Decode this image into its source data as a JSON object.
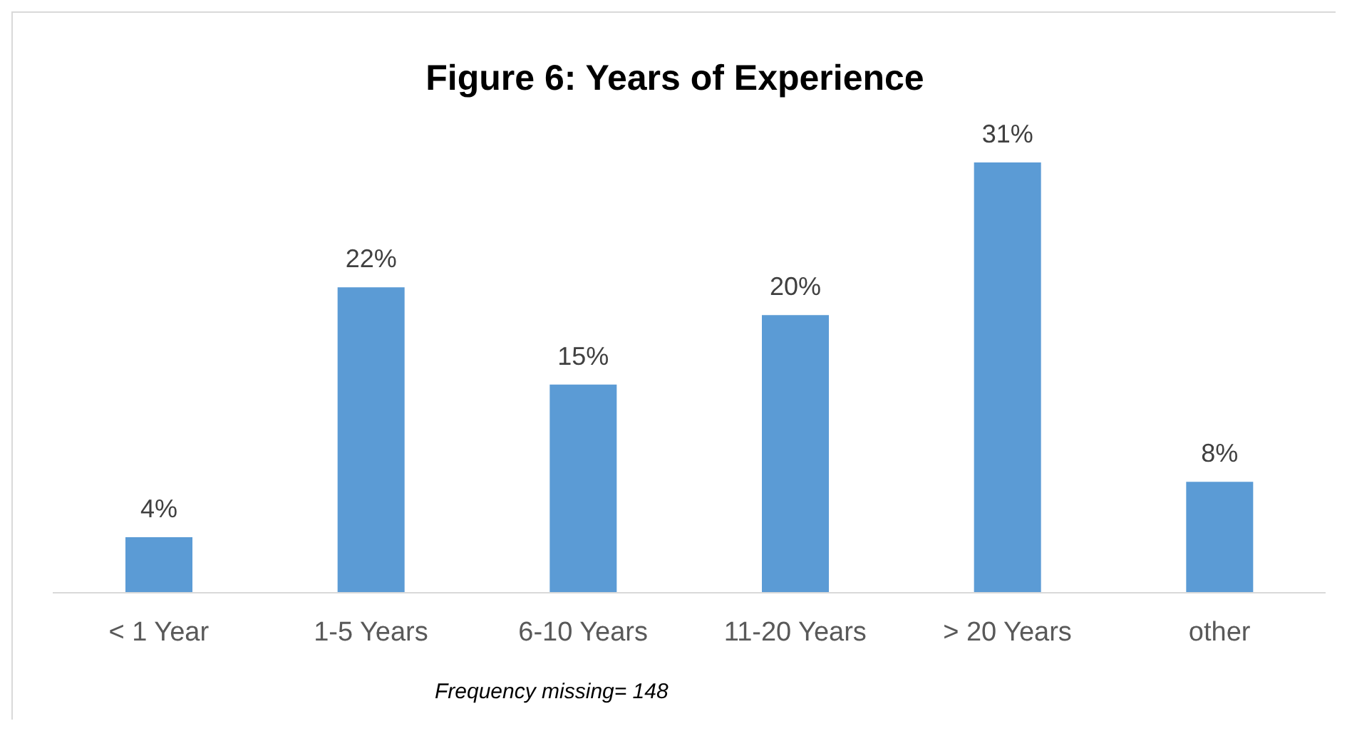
{
  "chart_data": {
    "type": "bar",
    "title": "Figure 6: Years of Experience",
    "categories": [
      "< 1 Year",
      "1-5 Years",
      "6-10 Years",
      "11-20 Years",
      "> 20 Years",
      "other"
    ],
    "values": [
      4,
      22,
      15,
      20,
      31,
      8
    ],
    "value_labels": [
      "4%",
      "22%",
      "15%",
      "20%",
      "31%",
      "8%"
    ],
    "color": "#5b9bd5",
    "grid": false,
    "annotations": [
      "Frequency missing= 148"
    ]
  }
}
